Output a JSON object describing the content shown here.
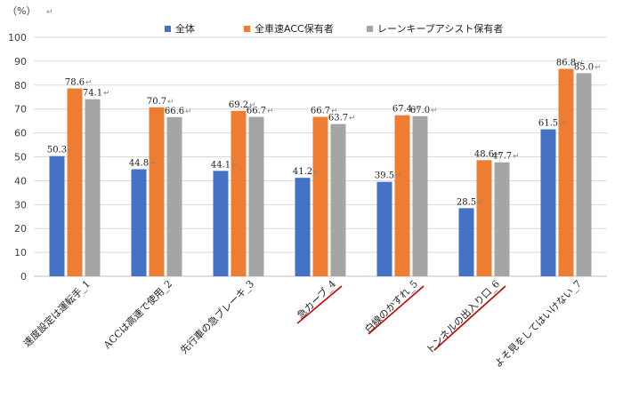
{
  "chart_data": {
    "type": "bar",
    "ylabel": "（%）",
    "ylim": [
      0,
      100
    ],
    "yticks": [
      "0",
      "10",
      "20",
      "30",
      "40",
      "50",
      "60",
      "70",
      "80",
      "90",
      "100"
    ],
    "grid": true,
    "legend_position": "top-center",
    "categories": [
      "速度設定は運転手_1",
      "ACCは高速で使用_2",
      "先行車の急ブレーキ_3",
      "急カーブ_4",
      "白線のかすれ_5",
      "トンネルの出入り口_6",
      "よそ見をしてはいけない_7"
    ],
    "underlined_categories": [
      3,
      4,
      5
    ],
    "underline_color": "#cc0000",
    "series": [
      {
        "name": "全体",
        "color": "#4472c4",
        "values": [
          50.3,
          44.8,
          44.1,
          41.2,
          39.5,
          28.5,
          61.5
        ],
        "labels": [
          "50.3",
          "44.8",
          "44.1",
          "41.2",
          "39.5",
          "28.5",
          "61.5"
        ]
      },
      {
        "name": "全車速ACC保有者",
        "color": "#ed7d31",
        "values": [
          78.6,
          70.7,
          69.2,
          66.7,
          67.4,
          48.6,
          86.8
        ],
        "labels": [
          "78.6",
          "70.7",
          "69.2",
          "66.7",
          "67.4",
          "48.6",
          "86.8"
        ]
      },
      {
        "name": "レーンキープアシスト保有者",
        "color": "#a5a5a5",
        "values": [
          74.1,
          66.6,
          66.7,
          63.7,
          67.0,
          47.7,
          85.0
        ],
        "labels": [
          "74.1",
          "66.6",
          "66.7",
          "63.7",
          "67.0",
          "47.7",
          "85.0"
        ]
      }
    ]
  }
}
